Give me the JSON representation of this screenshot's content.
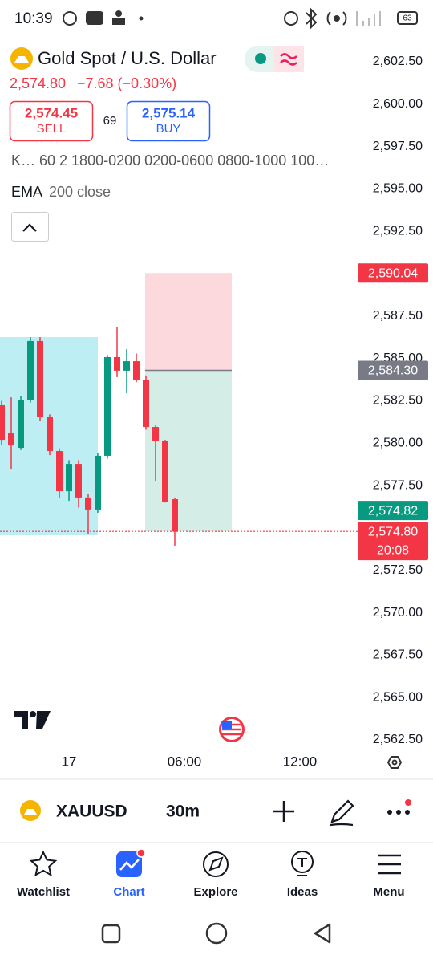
{
  "status_bar": {
    "time": "10:39",
    "battery": "63"
  },
  "header": {
    "symbol_title": "Gold Spot / U.S. Dollar",
    "last_price": "2,574.80",
    "change": "−7.68 (−0.30%)",
    "sell": {
      "price": "2,574.45",
      "label": "SELL"
    },
    "spread": "69",
    "buy": {
      "price": "2,575.14",
      "label": "BUY"
    },
    "session_indicator": "K… 60 2 1800-0200 0200-0600 0800-1000 100…",
    "ema_label": "EMA",
    "ema_params": "200 close"
  },
  "chart_data": {
    "type": "candlestick",
    "categories": [
      null,
      null,
      null,
      null,
      null,
      null,
      null,
      "17",
      null,
      null,
      null,
      null,
      null,
      null,
      null,
      null,
      null,
      null,
      null,
      "06:00",
      null,
      null,
      null,
      null,
      null,
      null,
      null,
      null,
      null,
      null,
      null,
      "12:00"
    ],
    "open": [
      2582.24,
      2580.58,
      2579.73,
      2582.57,
      2586.03,
      2581.53,
      2579.54,
      2577.17,
      2578.78,
      2576.8,
      2576.09,
      2579.26,
      2585.08,
      2584.28,
      2584.84,
      2583.75,
      2580.96,
      2580.11,
      2576.7,
      null,
      null,
      null,
      null,
      null,
      null,
      null,
      null,
      null,
      null,
      null,
      null,
      null
    ],
    "high": [
      2582.5,
      2582.71,
      2582.8,
      2586.26,
      2586.26,
      2581.7,
      2579.7,
      2579.0,
      2579.0,
      2577.0,
      2579.4,
      2585.2,
      2586.88,
      2585.55,
      2585.3,
      2584.0,
      2581.1,
      2580.2,
      2576.8,
      null,
      null,
      null,
      null,
      null,
      null,
      null,
      null,
      null,
      null,
      null,
      null,
      null
    ],
    "low": [
      2579.9,
      2578.45,
      2579.6,
      2582.4,
      2581.3,
      2579.3,
      2576.8,
      2576.6,
      2576.2,
      2574.67,
      2575.9,
      2579.1,
      2583.9,
      2582.95,
      2583.6,
      2580.8,
      2577.74,
      2576.5,
      2573.96,
      null,
      null,
      null,
      null,
      null,
      null,
      null,
      null,
      null,
      null,
      null,
      null,
      null
    ],
    "close": [
      2580.2,
      2579.87,
      2582.57,
      2586.03,
      2581.53,
      2579.54,
      2577.17,
      2578.78,
      2576.8,
      2576.09,
      2579.26,
      2585.08,
      2584.28,
      2584.84,
      2583.75,
      2580.96,
      2580.11,
      2576.56,
      2574.8,
      null,
      null,
      null,
      null,
      null,
      null,
      null,
      null,
      null,
      null,
      null,
      null,
      null
    ],
    "up_color": "#089981",
    "down_color": "#f23645",
    "ylim": [
      2562.5,
      2602.5
    ],
    "yticks": [
      {
        "value": 2602.5,
        "label": "2,602.50"
      },
      {
        "value": 2600,
        "label": "2,600.00"
      },
      {
        "value": 2597.5,
        "label": "2,597.50"
      },
      {
        "value": 2595,
        "label": "2,595.00"
      },
      {
        "value": 2592.5,
        "label": "2,592.50"
      },
      {
        "value": 2590,
        "label": "2,590.00"
      },
      {
        "value": 2587.5,
        "label": "2,587.50"
      },
      {
        "value": 2585,
        "label": "2,585.00"
      },
      {
        "value": 2582.5,
        "label": "2,582.50"
      },
      {
        "value": 2580,
        "label": "2,580.00"
      },
      {
        "value": 2577.5,
        "label": "2,577.50"
      },
      {
        "value": 2575,
        "label": "2,575.00"
      },
      {
        "value": 2572.5,
        "label": "2,572.50"
      },
      {
        "value": 2570,
        "label": "2,570.00"
      },
      {
        "value": 2567.5,
        "label": "2,567.50"
      },
      {
        "value": 2565,
        "label": "2,565.00"
      },
      {
        "value": 2562.5,
        "label": "2,562.50"
      }
    ],
    "markers": [
      {
        "value": 2590.04,
        "label": "2,590.04",
        "color": "#f23645"
      },
      {
        "value": 2584.3,
        "label": "2,584.30",
        "color": "#787b86"
      },
      {
        "value": 2574.8,
        "label": "2,574.80",
        "color": "#f23645",
        "countdown": "20:08"
      },
      {
        "value": 2574.82,
        "label": "2,574.82",
        "color": "#089981"
      }
    ]
  },
  "toolbar": {
    "symbol": "XAUUSD",
    "interval": "30m"
  },
  "nav": [
    "Watchlist",
    "Chart",
    "Explore",
    "Ideas",
    "Menu"
  ]
}
